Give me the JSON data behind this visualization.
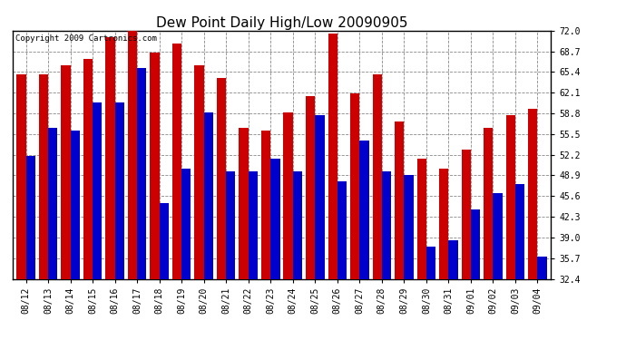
{
  "title": "Dew Point Daily High/Low 20090905",
  "copyright": "Copyright 2009 Cartronics.com",
  "dates": [
    "08/12",
    "08/13",
    "08/14",
    "08/15",
    "08/16",
    "08/17",
    "08/18",
    "08/19",
    "08/20",
    "08/21",
    "08/22",
    "08/23",
    "08/24",
    "08/25",
    "08/26",
    "08/27",
    "08/28",
    "08/29",
    "08/30",
    "08/31",
    "09/01",
    "09/02",
    "09/03",
    "09/04"
  ],
  "highs": [
    65.0,
    65.0,
    66.5,
    67.5,
    71.0,
    72.5,
    68.5,
    70.0,
    66.5,
    64.5,
    56.5,
    56.0,
    59.0,
    61.5,
    71.5,
    62.0,
    65.0,
    57.5,
    51.5,
    50.0,
    53.0,
    56.5,
    58.5,
    59.5
  ],
  "lows": [
    52.0,
    56.5,
    56.0,
    60.5,
    60.5,
    66.0,
    44.5,
    50.0,
    59.0,
    49.5,
    49.5,
    51.5,
    49.5,
    58.5,
    48.0,
    54.5,
    49.5,
    49.0,
    37.5,
    38.5,
    43.5,
    46.0,
    47.5,
    36.0
  ],
  "high_color": "#cc0000",
  "low_color": "#0000cc",
  "background_color": "#ffffff",
  "grid_color": "#888888",
  "ylim_min": 32.4,
  "ylim_max": 72.0,
  "yticks": [
    32.4,
    35.7,
    39.0,
    42.3,
    45.6,
    48.9,
    52.2,
    55.5,
    58.8,
    62.1,
    65.4,
    68.7,
    72.0
  ],
  "title_fontsize": 11,
  "copyright_fontsize": 6.5,
  "tick_fontsize": 7,
  "bar_width": 0.42
}
